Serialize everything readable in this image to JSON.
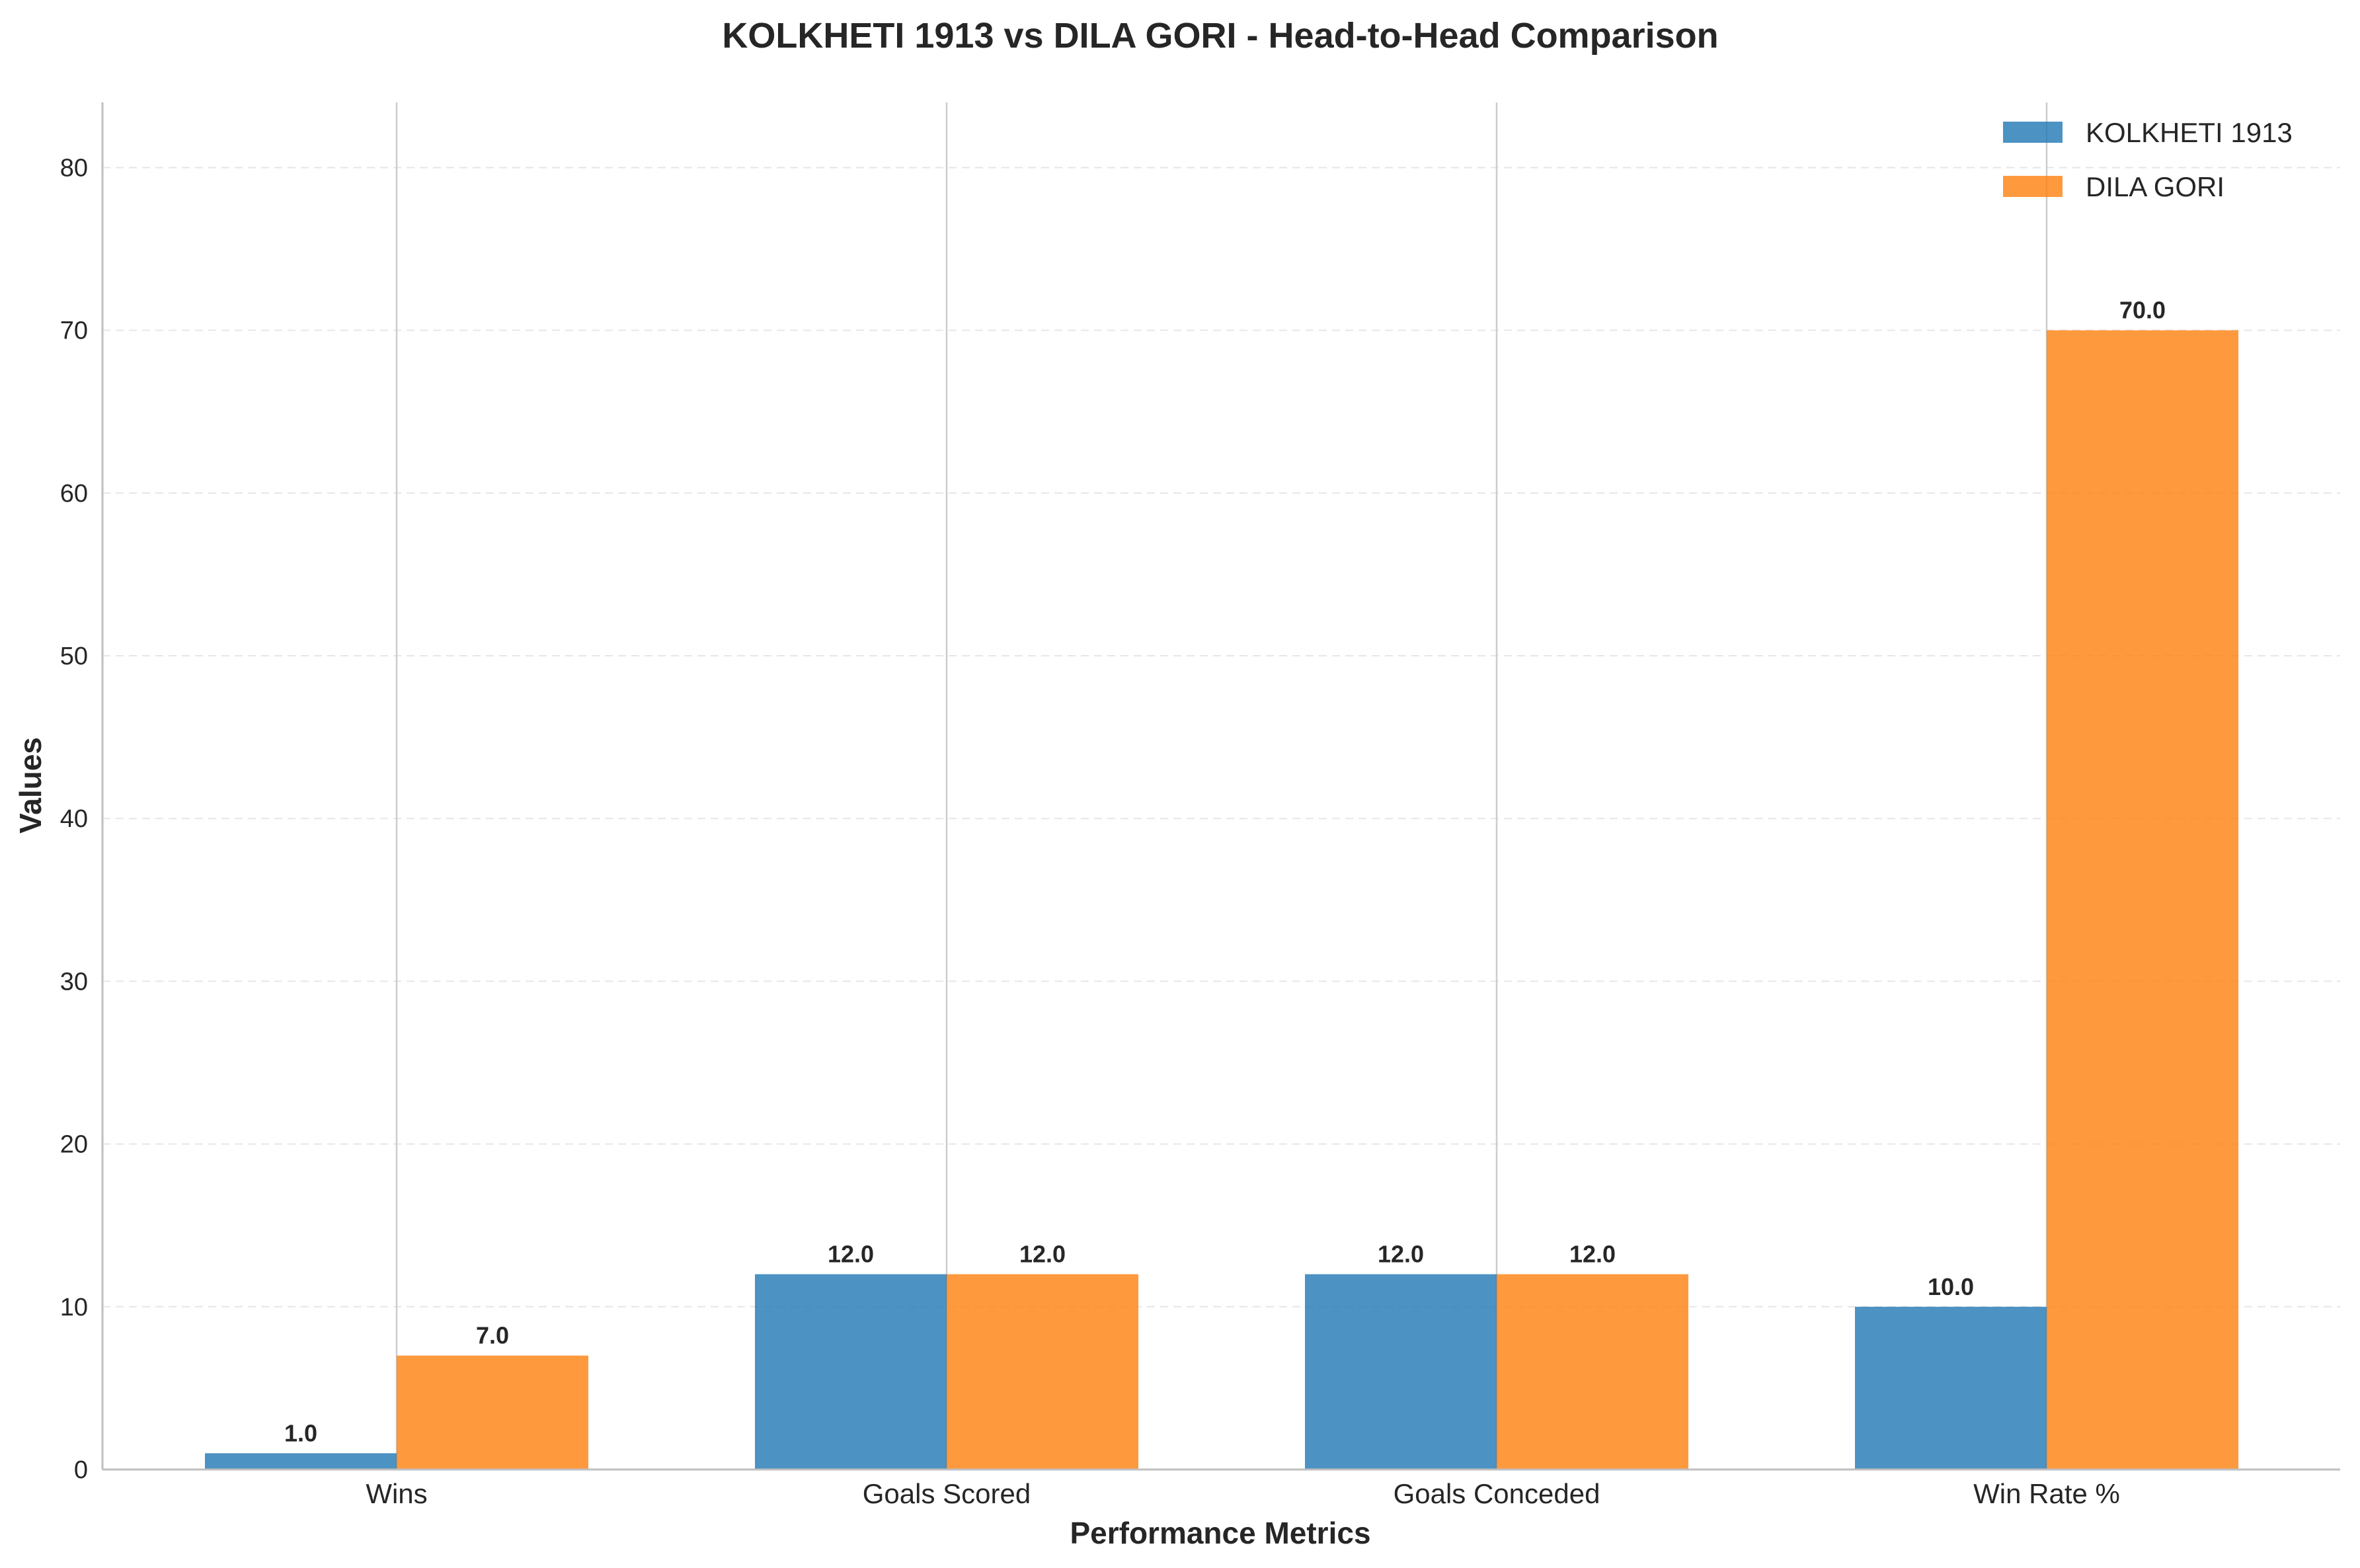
{
  "chart_data": {
    "type": "bar",
    "title": "KOLKHETI 1913 vs DILA GORI - Head-to-Head Comparison",
    "xlabel": "Performance Metrics",
    "ylabel": "Values",
    "categories": [
      "Wins",
      "Goals Scored",
      "Goals Conceded",
      "Win Rate %"
    ],
    "series": [
      {
        "name": "KOLKHETI 1913",
        "color": "#1f77b4",
        "values": [
          1.0,
          12.0,
          12.0,
          10.0
        ],
        "labels": [
          "1.0",
          "12.0",
          "12.0",
          "10.0"
        ]
      },
      {
        "name": "DILA GORI",
        "color": "#ff7f0e",
        "values": [
          7.0,
          12.0,
          12.0,
          70.0
        ],
        "labels": [
          "7.0",
          "12.0",
          "12.0",
          "70.0"
        ]
      }
    ],
    "ylim": [
      0,
      84
    ],
    "yticks": [
      0,
      10,
      20,
      30,
      40,
      50,
      60,
      70,
      80
    ],
    "ytick_labels": [
      "0",
      "10",
      "20",
      "30",
      "40",
      "50",
      "60",
      "70",
      "80"
    ],
    "grid": true,
    "legend_position": "top-right"
  }
}
